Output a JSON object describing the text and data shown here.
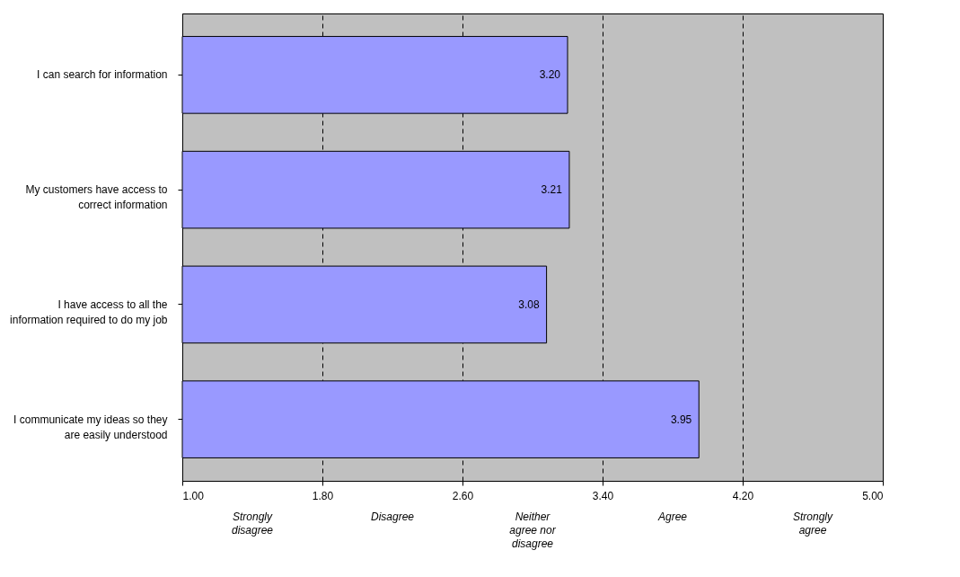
{
  "chart_data": {
    "type": "bar",
    "orientation": "horizontal",
    "categories": [
      "I can search for information",
      "My customers have access to correct information",
      "I have access to all the information required to do my job",
      "I communicate my ideas so they are easily understood"
    ],
    "values": [
      3.2,
      3.21,
      3.08,
      3.95
    ],
    "value_labels": [
      "3.20",
      "3.21",
      "3.08",
      "3.95"
    ],
    "color": "#9999ff",
    "xlim": [
      1,
      5
    ],
    "xticks": [
      {
        "value": 1,
        "label": "1.00"
      },
      {
        "value": 1.8,
        "label": "1.80"
      },
      {
        "value": 2.6,
        "label": "2.60"
      },
      {
        "value": 3.4,
        "label": "3.40"
      },
      {
        "value": 4.2,
        "label": "4.20"
      },
      {
        "value": 5,
        "label": "5.00"
      }
    ],
    "grid": "x",
    "annotations": [
      "Strongly disagree",
      "Disagree",
      "Neither agree nor disagree",
      "Agree",
      "Strongly agree"
    ]
  }
}
